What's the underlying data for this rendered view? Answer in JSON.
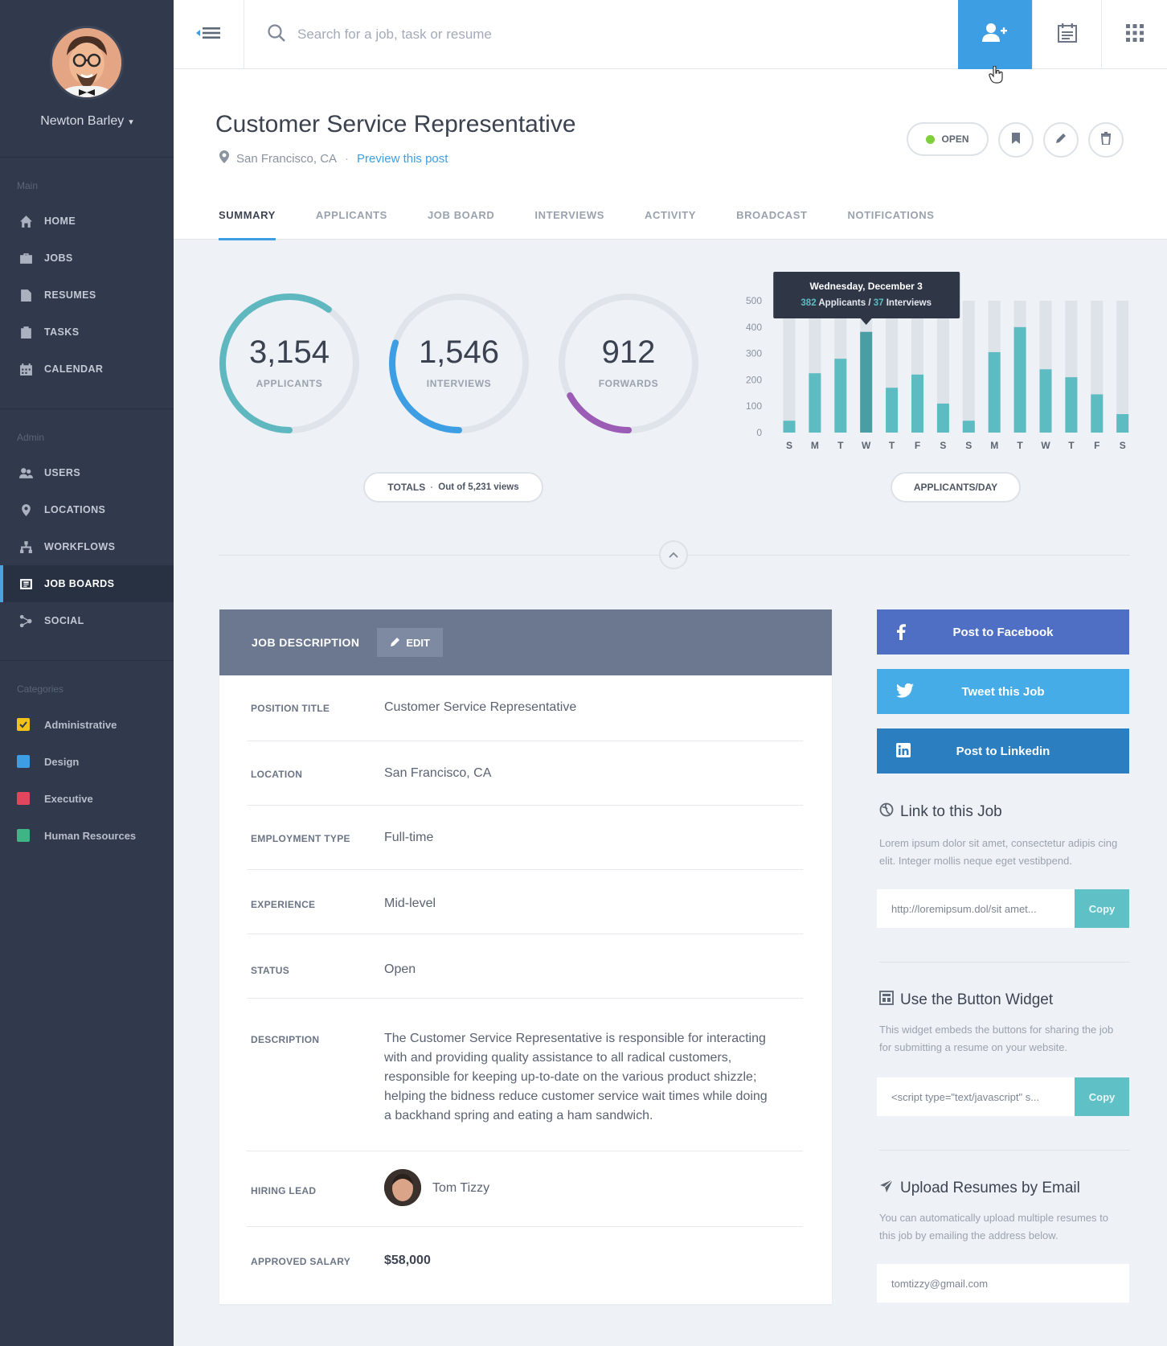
{
  "user": {
    "name": "Newton Barley"
  },
  "sidebar": {
    "main_title": "Main",
    "main": [
      {
        "label": "HOME",
        "icon": "home-icon"
      },
      {
        "label": "JOBS",
        "icon": "briefcase-icon"
      },
      {
        "label": "RESUMES",
        "icon": "document-icon"
      },
      {
        "label": "TASKS",
        "icon": "clipboard-icon"
      },
      {
        "label": "CALENDAR",
        "icon": "calendar-icon"
      }
    ],
    "admin_title": "Admin",
    "admin": [
      {
        "label": "USERS",
        "icon": "users-icon"
      },
      {
        "label": "LOCATIONS",
        "icon": "map-pin-icon"
      },
      {
        "label": "WORKFLOWS",
        "icon": "workflow-icon"
      },
      {
        "label": "JOB BOARDS",
        "icon": "job-board-icon",
        "active": true
      },
      {
        "label": "SOCIAL",
        "icon": "social-icon"
      }
    ],
    "categories_title": "Categories",
    "categories": [
      {
        "label": "Administrative",
        "color": "#f2c21b",
        "checked": true
      },
      {
        "label": "Design",
        "color": "#3d9ee4"
      },
      {
        "label": "Executive",
        "color": "#e2455e"
      },
      {
        "label": "Human Resources",
        "color": "#3fb485"
      }
    ]
  },
  "search": {
    "placeholder": "Search for a job, task or resume"
  },
  "job": {
    "title": "Customer Service Representative",
    "location": "San Francisco, CA",
    "preview_link": "Preview this post",
    "status_badge": "OPEN"
  },
  "tabs": [
    "SUMMARY",
    "APPLICANTS",
    "JOB BOARD",
    "INTERVIEWS",
    "ACTIVITY",
    "BROADCAST",
    "NOTIFICATIONS"
  ],
  "stats": [
    {
      "value": "3,154",
      "label": "APPLICANTS",
      "fraction": 0.6,
      "color": "#5fb8c0"
    },
    {
      "value": "1,546",
      "label": "INTERVIEWS",
      "fraction": 0.3,
      "color": "#3d9ee4"
    },
    {
      "value": "912",
      "label": "FORWARDS",
      "fraction": 0.17,
      "color": "#9a5cb4"
    }
  ],
  "totals_pill": {
    "label": "TOTALS",
    "detail": "Out of 5,231 views"
  },
  "chart_pill": "APPLICANTS/DAY",
  "chart_data": {
    "type": "bar",
    "categories": [
      "S",
      "M",
      "T",
      "W",
      "T",
      "F",
      "S",
      "S",
      "M",
      "T",
      "W",
      "T",
      "F",
      "S"
    ],
    "values": [
      45,
      225,
      280,
      382,
      170,
      220,
      110,
      45,
      305,
      400,
      240,
      210,
      145,
      70
    ],
    "ylim": [
      0,
      500
    ],
    "yticks": [
      500,
      400,
      300,
      200,
      100,
      0
    ],
    "highlight_index": 3,
    "tooltip": {
      "title": "Wednesday, December 3",
      "applicants": "382",
      "applicants_label": " Applicants / ",
      "interviews": "37",
      "interviews_label": " Interviews"
    }
  },
  "job_description": {
    "header": "JOB DESCRIPTION",
    "edit_label": "EDIT",
    "rows": [
      {
        "key": "POSITION TITLE",
        "value": "Customer Service Representative"
      },
      {
        "key": "LOCATION",
        "value": "San Francisco, CA"
      },
      {
        "key": "EMPLOYMENT TYPE",
        "value": "Full-time"
      },
      {
        "key": "EXPERIENCE",
        "value": "Mid-level"
      },
      {
        "key": "STATUS",
        "value": "Open"
      },
      {
        "key": "DESCRIPTION",
        "value": "The Customer Service Representative is responsible for interacting with and providing quality assistance to all radical customers, responsible for keeping up-to-date on the various product shizzle; helping the bidness reduce customer service wait times while doing a backhand spring and eating a ham sandwich."
      },
      {
        "key": "HIRING LEAD",
        "value": "Tom Tizzy"
      },
      {
        "key": "APPROVED SALARY",
        "value": "$58,000"
      }
    ]
  },
  "share": [
    {
      "label": "Post to Facebook",
      "color": "#4f6fc4",
      "icon": "facebook-icon"
    },
    {
      "label": "Tweet this Job",
      "color": "#45ace8",
      "icon": "twitter-icon"
    },
    {
      "label": "Post to Linkedin",
      "color": "#2b7ec0",
      "icon": "linkedin-icon"
    }
  ],
  "widgets": [
    {
      "title": "Link to this Job",
      "icon": "globe-icon",
      "text": "Lorem ipsum dolor sit amet, consectetur adipis cing elit. Integer mollis neque eget vestibpend.",
      "value": "http://loremipsum.dol/sit amet...",
      "copy": "Copy"
    },
    {
      "title": "Use the Button Widget",
      "icon": "widget-icon",
      "text": "This widget embeds the buttons for sharing the job for submitting a resume on your website.",
      "value": "<script type=\"text/javascript\" s...",
      "copy": "Copy"
    },
    {
      "title": "Upload Resumes by Email",
      "icon": "paper-plane-icon",
      "text": "You can automatically upload multiple resumes to this job by emailing the address below.",
      "value": "tomtizzy@gmail.com"
    }
  ]
}
